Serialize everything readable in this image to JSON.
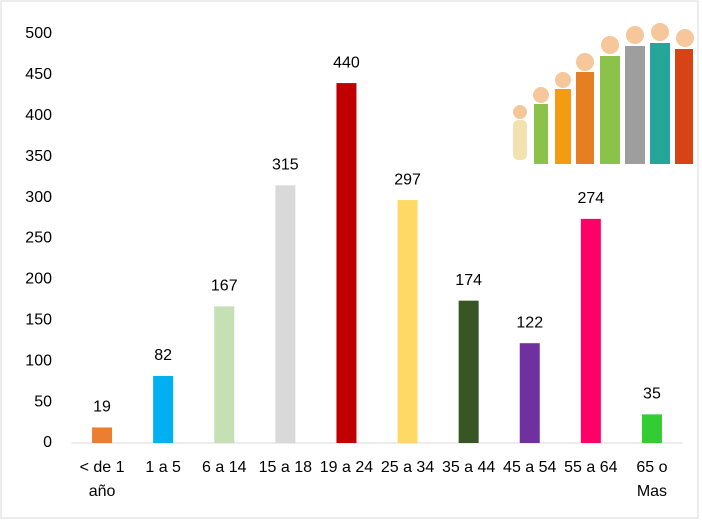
{
  "chart_data": {
    "type": "bar",
    "categories": [
      "< de 1 año",
      "1 a 5",
      "6 a 14",
      "15 a 18",
      "19 a 24",
      "25 a 34",
      "35 a 44",
      "45 a 54",
      "55 a 64",
      "65 o Mas"
    ],
    "values": [
      19,
      82,
      167,
      315,
      440,
      297,
      174,
      122,
      274,
      35
    ],
    "colors": [
      "#ed7d31",
      "#00b0f0",
      "#c5e0b4",
      "#d9d9d9",
      "#c00000",
      "#ffd966",
      "#375623",
      "#7030a0",
      "#ff0066",
      "#33cc33"
    ],
    "ylim": [
      0,
      500
    ],
    "yticks": [
      0,
      50,
      100,
      150,
      200,
      250,
      300,
      350,
      400,
      450,
      500
    ],
    "grid": false,
    "data_labels": true
  }
}
